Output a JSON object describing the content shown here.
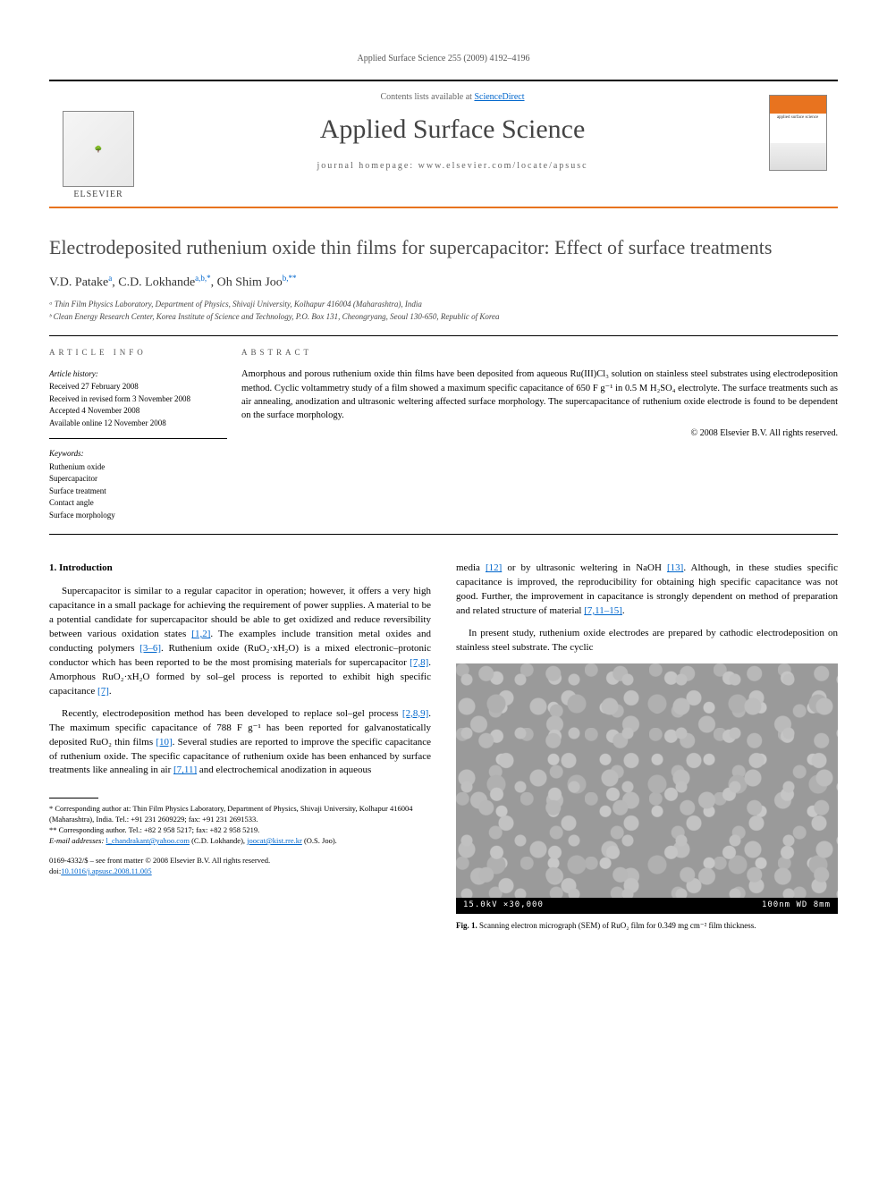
{
  "running_header": "Applied Surface Science 255 (2009) 4192–4196",
  "masthead": {
    "contents_prefix": "Contents lists available at ",
    "contents_link": "ScienceDirect",
    "journal": "Applied Surface Science",
    "homepage_prefix": "journal homepage: ",
    "homepage_url": "www.elsevier.com/locate/apsusc",
    "publisher_label": "ELSEVIER",
    "cover_text": "applied surface science"
  },
  "article": {
    "title": "Electrodeposited ruthenium oxide thin films for supercapacitor: Effect of surface treatments",
    "authors_html": "V.D. Patake<sup>a</sup>, C.D. Lokhande<sup>a,b,*</sup>, Oh Shim Joo<sup>b,**</sup>",
    "affiliations": [
      "ᵃ Thin Film Physics Laboratory, Department of Physics, Shivaji University, Kolhapur 416004 (Maharashtra), India",
      "ᵇ Clean Energy Research Center, Korea Institute of Science and Technology, P.O. Box 131, Cheongryang, Seoul 130-650, Republic of Korea"
    ]
  },
  "info": {
    "heading": "ARTICLE INFO",
    "history_label": "Article history:",
    "history": [
      "Received 27 February 2008",
      "Received in revised form 3 November 2008",
      "Accepted 4 November 2008",
      "Available online 12 November 2008"
    ],
    "kw_label": "Keywords:",
    "keywords": [
      "Ruthenium oxide",
      "Supercapacitor",
      "Surface treatment",
      "Contact angle",
      "Surface morphology"
    ]
  },
  "abstract": {
    "heading": "ABSTRACT",
    "text": "Amorphous and porous ruthenium oxide thin films have been deposited from aqueous Ru(III)Cl₃ solution on stainless steel substrates using electrodeposition method. Cyclic voltammetry study of a film showed a maximum specific capacitance of 650 F g⁻¹ in 0.5 M H₂SO₄ electrolyte. The surface treatments such as air annealing, anodization and ultrasonic weltering affected surface morphology. The supercapacitance of ruthenium oxide electrode is found to be dependent on the surface morphology.",
    "copyright": "© 2008 Elsevier B.V. All rights reserved."
  },
  "body": {
    "section_num": "1.",
    "section_title": "Introduction",
    "p1": "Supercapacitor is similar to a regular capacitor in operation; however, it offers a very high capacitance in a small package for achieving the requirement of power supplies. A material to be a potential candidate for supercapacitor should be able to get oxidized and reduce reversibility between various oxidation states [1,2]. The examples include transition metal oxides and conducting polymers [3–6]. Ruthenium oxide (RuO₂·xH₂O) is a mixed electronic–protonic conductor which has been reported to be the most promising materials for supercapacitor [7,8]. Amorphous RuO₂·xH₂O formed by sol–gel process is reported to exhibit high specific capacitance [7].",
    "p2": "Recently, electrodeposition method has been developed to replace sol–gel process [2,8,9]. The maximum specific capacitance of 788 F g⁻¹ has been reported for galvanostatically deposited RuO₂ thin films [10]. Several studies are reported to improve the specific capacitance of ruthenium oxide. The specific capacitance of ruthenium oxide has been enhanced by surface treatments like annealing in air [7,11] and electrochemical anodization in aqueous",
    "p3": "media [12] or by ultrasonic weltering in NaOH [13]. Although, in these studies specific capacitance is improved, the reproducibility for obtaining high specific capacitance was not good. Further, the improvement in capacitance is strongly dependent on method of preparation and related structure of material [7,11–15].",
    "p4": "In present study, ruthenium oxide electrodes are prepared by cathodic electrodeposition on stainless steel substrate. The cyclic"
  },
  "footnotes": {
    "f1": "* Corresponding author at: Thin Film Physics Laboratory, Department of Physics, Shivaji University, Kolhapur 416004 (Maharashtra), India. Tel.: +91 231 2609229; fax: +91 231 2691533.",
    "f2": "** Corresponding author. Tel.: +82 2 958 5217; fax: +82 2 958 5219.",
    "emails_label": "E-mail addresses:",
    "email1": "l_chandrakant@yahoo.com",
    "email1_who": "(C.D. Lokhande),",
    "email2": "joocat@kist.rre.kr",
    "email2_who": "(O.S. Joo)."
  },
  "pub": {
    "line1": "0169-4332/$ – see front matter © 2008 Elsevier B.V. All rights reserved.",
    "doi_label": "doi:",
    "doi": "10.1016/j.apsusc.2008.11.005"
  },
  "figure": {
    "sem_bar_left": "15.0kV  ×30,000",
    "sem_bar_right": "100nm WD 8mm",
    "label": "Fig. 1.",
    "caption": "Scanning electron micrograph (SEM) of RuO₂ film for 0.349 mg cm⁻² film thickness."
  },
  "colors": {
    "accent": "#e8731f",
    "link": "#0066cc",
    "text": "#000000"
  }
}
